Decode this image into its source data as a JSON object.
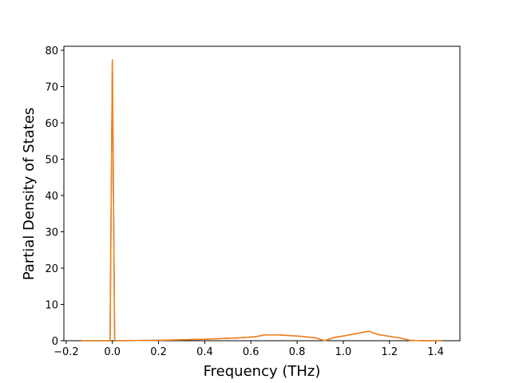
{
  "chart_data": {
    "type": "line",
    "xlabel": "Frequency (THz)",
    "ylabel": "Partial Density of States",
    "x": [
      -0.135,
      -0.01,
      0.0,
      0.01,
      0.2,
      0.4,
      0.55,
      0.62,
      0.66,
      0.72,
      0.8,
      0.88,
      0.92,
      0.96,
      1.0,
      1.11,
      1.12,
      1.15,
      1.25,
      1.29,
      1.35,
      1.43
    ],
    "series": [
      {
        "color": "#1f77b4",
        "values": [
          0,
          0,
          77.5,
          0,
          0.1,
          0.4,
          0.8,
          1.1,
          1.6,
          1.6,
          1.3,
          0.8,
          0.0,
          0.9,
          1.3,
          2.6,
          2.4,
          1.7,
          0.7,
          0.1,
          0,
          0
        ]
      },
      {
        "color": "#ff7f0e",
        "values": [
          0,
          0,
          77.5,
          0,
          0.1,
          0.4,
          0.8,
          1.1,
          1.6,
          1.6,
          1.3,
          0.8,
          0.0,
          0.9,
          1.3,
          2.6,
          2.4,
          1.7,
          0.7,
          0.1,
          0,
          0
        ]
      }
    ],
    "xlim": [
      -0.21,
      1.505
    ],
    "ylim": [
      0,
      81.1
    ],
    "xticks": [
      {
        "value": -0.2,
        "label": "−0.2"
      },
      {
        "value": 0,
        "label": "0.0"
      },
      0.2,
      0.4,
      0.6,
      0.8,
      {
        "value": 1,
        "label": "1.0"
      },
      1.2,
      1.4
    ],
    "yticks": [
      0,
      10,
      20,
      30,
      40,
      50,
      60,
      70,
      80
    ]
  }
}
